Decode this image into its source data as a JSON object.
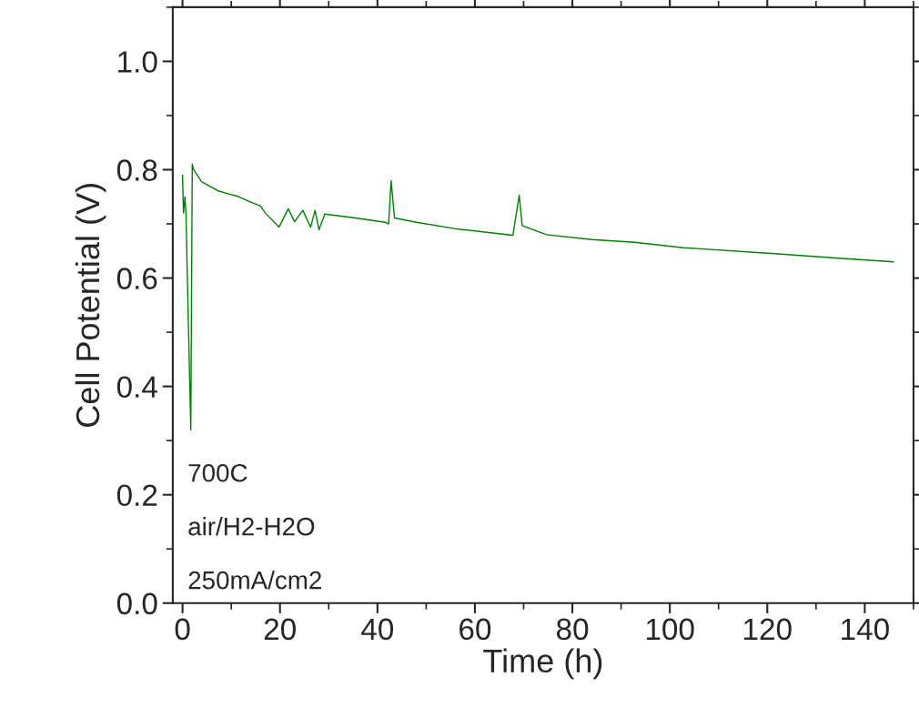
{
  "chart_data": {
    "type": "line",
    "xlabel": "Time (h)",
    "ylabel": "Cell Potential (V)",
    "xlim": [
      -2,
      150
    ],
    "xticks": [
      0,
      20,
      40,
      60,
      80,
      100,
      120,
      140
    ],
    "ylim": [
      0,
      1.1
    ],
    "yticks": [
      {
        "value": 0,
        "label": "0.0"
      },
      0.2,
      0.4,
      0.6,
      0.8,
      {
        "value": 1.0,
        "label": "1.0"
      }
    ],
    "grid": false,
    "legend": false,
    "marker": "none",
    "line_style": "solid",
    "annotations": [
      "700C",
      "air/H2-H2O",
      "250mA/cm2"
    ],
    "series": [
      {
        "color": "#008000",
        "x": [
          0,
          0.2,
          0.5,
          0.7,
          1.7,
          2.0,
          2.3,
          3.9,
          7.3,
          11.6,
          14,
          16,
          17,
          19.8,
          21.7,
          23,
          24.7,
          26.3,
          27.2,
          28,
          29.2,
          35.4,
          41.6,
          42.3,
          42.8,
          43.5,
          48,
          56,
          62,
          67.8,
          69.1,
          69.7,
          74.7,
          84,
          92.8,
          102.8,
          121.5,
          134,
          145.9
        ],
        "values": [
          0.79,
          0.72,
          0.75,
          0.72,
          0.32,
          0.81,
          0.8,
          0.778,
          0.761,
          0.75,
          0.74,
          0.733,
          0.72,
          0.694,
          0.728,
          0.704,
          0.725,
          0.694,
          0.725,
          0.689,
          0.718,
          0.711,
          0.703,
          0.7,
          0.78,
          0.711,
          0.703,
          0.691,
          0.685,
          0.679,
          0.753,
          0.697,
          0.68,
          0.671,
          0.666,
          0.656,
          0.645,
          0.637,
          0.63
        ]
      }
    ]
  }
}
